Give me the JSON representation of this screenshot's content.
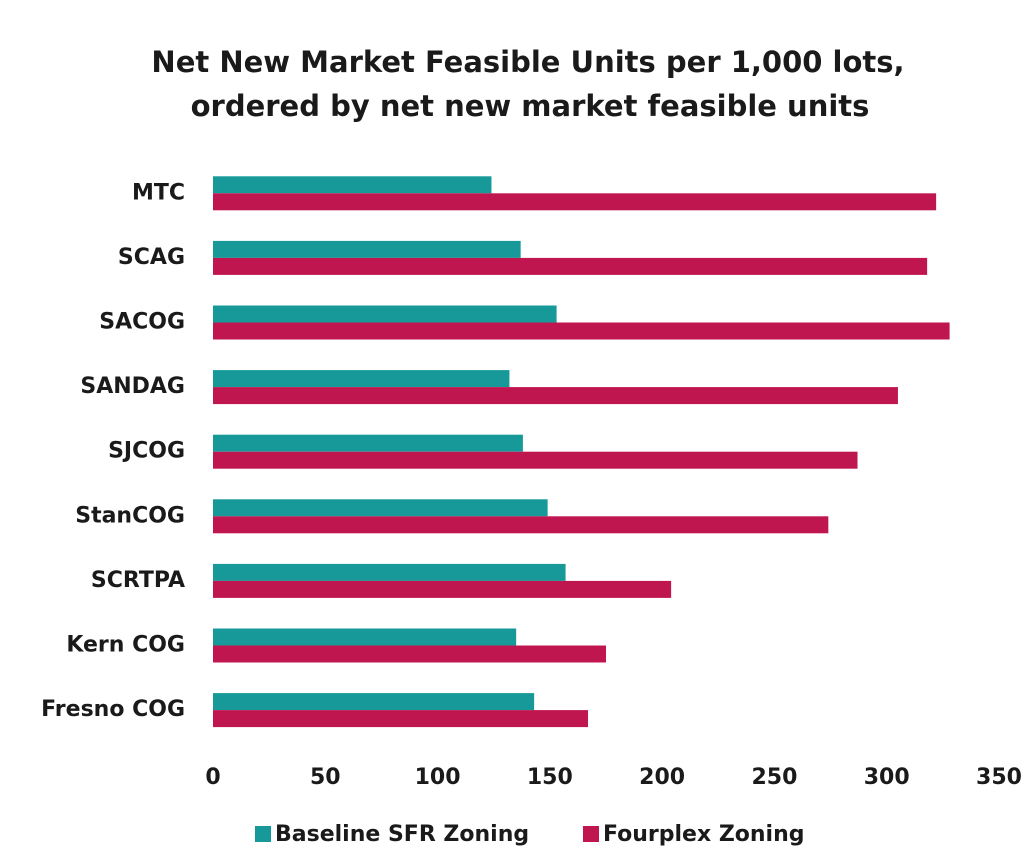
{
  "chart_data": {
    "type": "hbar",
    "title": [
      "Net New Market Feasible Units per 1,000 lots,",
      "ordered by net new market feasible units"
    ],
    "categories": [
      "MTC",
      "SCAG",
      "SACOG",
      "SANDAG",
      "SJCOG",
      "StanCOG",
      "SCRTPA",
      "Kern COG",
      "Fresno COG"
    ],
    "series": [
      {
        "name": "Baseline SFR Zoning",
        "color": "#17999a",
        "values": [
          124,
          137,
          153,
          132,
          138,
          149,
          157,
          135,
          143
        ]
      },
      {
        "name": "Fourplex Zoning",
        "color": "#c0164f",
        "values": [
          322,
          318,
          328,
          305,
          287,
          274,
          204,
          175,
          167
        ]
      }
    ],
    "xlim": [
      0,
      350
    ],
    "xticks": [
      0,
      50,
      100,
      150,
      200,
      250,
      300,
      350
    ],
    "grid": false,
    "legend": "bottom"
  }
}
